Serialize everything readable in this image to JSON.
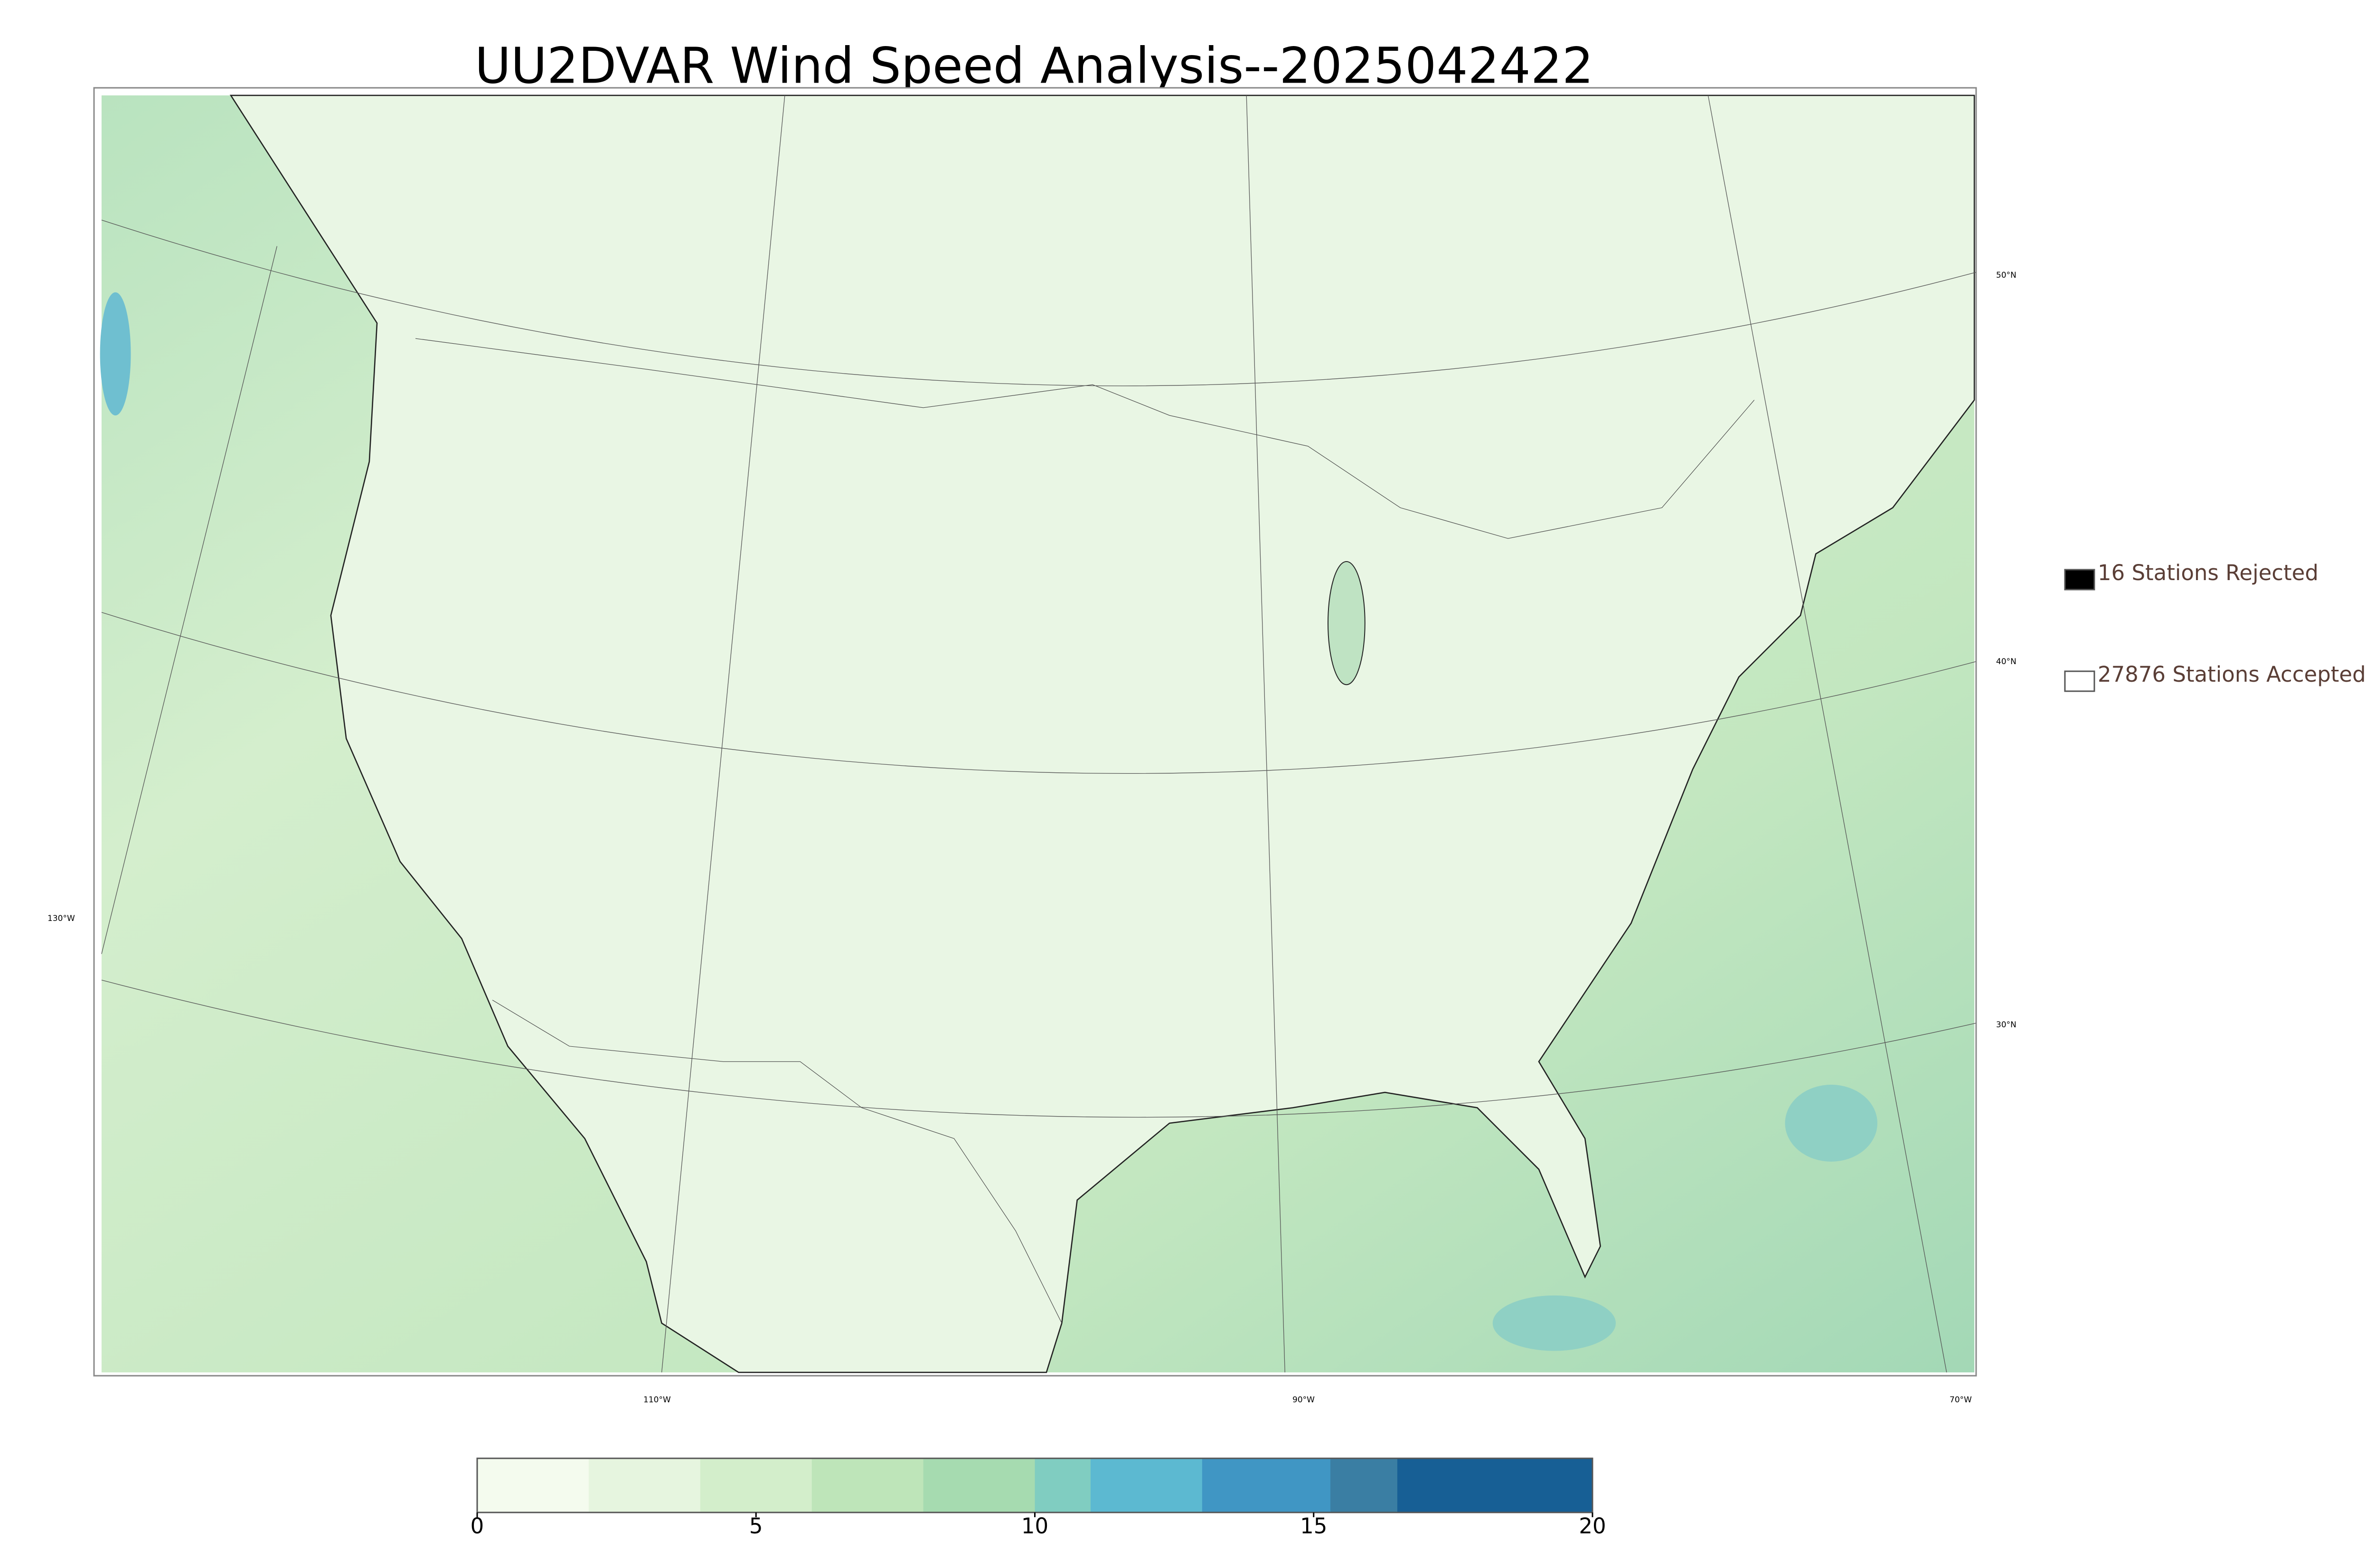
{
  "title": "UU2DVAR Wind Speed Analysis--2025042422",
  "legend": [
    {
      "label": "16 Stations Rejected",
      "fill": "#000000"
    },
    {
      "label": "27876 Stations Accepted",
      "fill": "#ffffff"
    }
  ],
  "graticule_labels": {
    "lat": [
      "50°N",
      "40°N",
      "30°N"
    ],
    "lon": [
      "130°W",
      "110°W",
      "90°W",
      "70°W"
    ]
  },
  "colorbar": {
    "bounds": [
      0,
      2,
      4,
      6,
      8,
      10,
      11,
      13,
      15.3,
      16.5,
      20
    ],
    "colors": [
      "#f4fbee",
      "#e6f5df",
      "#d3eecb",
      "#bee5b9",
      "#a6dbb0",
      "#80cdc1",
      "#5cb9d1",
      "#4096c4",
      "#3a7ea3",
      "#175f95"
    ],
    "ticks": [
      0,
      5,
      10,
      15,
      20
    ]
  }
}
